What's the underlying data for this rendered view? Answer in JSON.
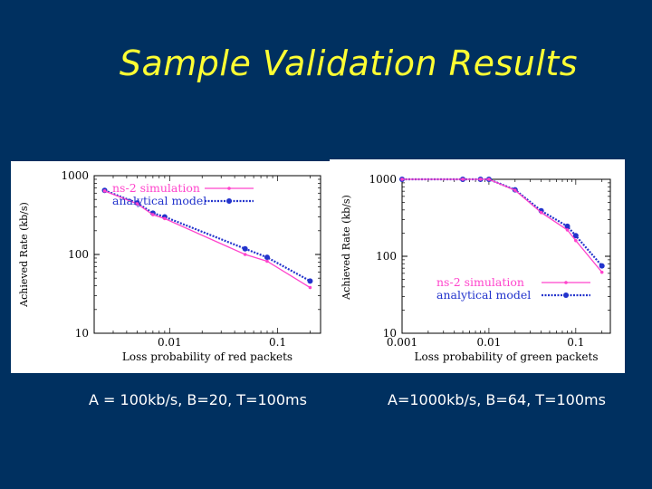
{
  "slide": {
    "title": "Sample Validation Results",
    "caption_left": "A = 100kb/s, B=20, T=100ms",
    "caption_right": "A=1000kb/s, B=64, T=100ms"
  },
  "colors": {
    "background": "#003060",
    "title": "#ffff33",
    "simulation": "#ff44cc",
    "model": "#2233cc"
  },
  "chart_data": [
    {
      "type": "line",
      "xscale": "log",
      "yscale": "log",
      "xlabel": "Loss probability of red packets",
      "ylabel": "Achieved Rate (kb/s)",
      "xlim": [
        0.002,
        0.25
      ],
      "ylim": [
        10,
        1000
      ],
      "xticks": [
        {
          "value": 0.01,
          "label": "0.01"
        },
        {
          "value": 0.1,
          "label": "0.1"
        }
      ],
      "yticks": [
        {
          "value": 10,
          "label": "10"
        },
        {
          "value": 100,
          "label": "100"
        },
        {
          "value": 1000,
          "label": "1000"
        }
      ],
      "legend_position": "top-left",
      "series": [
        {
          "name": "ns-2 simulation",
          "style": "simulation",
          "x": [
            0.0025,
            0.005,
            0.007,
            0.009,
            0.05,
            0.08,
            0.2
          ],
          "y": [
            640,
            440,
            320,
            285,
            100,
            82,
            38
          ]
        },
        {
          "name": "analytical model",
          "style": "model",
          "x": [
            0.0025,
            0.005,
            0.007,
            0.009,
            0.05,
            0.08,
            0.2
          ],
          "y": [
            650,
            450,
            335,
            300,
            118,
            92,
            46
          ]
        }
      ]
    },
    {
      "type": "line",
      "xscale": "log",
      "yscale": "log",
      "xlabel": "Loss probability of green packets",
      "ylabel": "Achieved Rate (kb/s)",
      "xlim": [
        0.001,
        0.25
      ],
      "ylim": [
        10,
        1000
      ],
      "xticks": [
        {
          "value": 0.001,
          "label": "0.001"
        },
        {
          "value": 0.01,
          "label": "0.01"
        },
        {
          "value": 0.1,
          "label": "0.1"
        }
      ],
      "yticks": [
        {
          "value": 10,
          "label": "10"
        },
        {
          "value": 100,
          "label": "100"
        },
        {
          "value": 1000,
          "label": "1000"
        }
      ],
      "legend_position": "bottom-right",
      "series": [
        {
          "name": "ns-2 simulation",
          "style": "simulation",
          "x": [
            0.001,
            0.005,
            0.008,
            0.01,
            0.02,
            0.04,
            0.08,
            0.1,
            0.2
          ],
          "y": [
            1000,
            1000,
            1000,
            1000,
            720,
            370,
            220,
            160,
            62
          ]
        },
        {
          "name": "analytical model",
          "style": "model",
          "x": [
            0.001,
            0.005,
            0.008,
            0.01,
            0.02,
            0.04,
            0.08,
            0.1,
            0.2
          ],
          "y": [
            1000,
            1000,
            1000,
            1000,
            730,
            390,
            245,
            185,
            75
          ]
        }
      ]
    }
  ]
}
